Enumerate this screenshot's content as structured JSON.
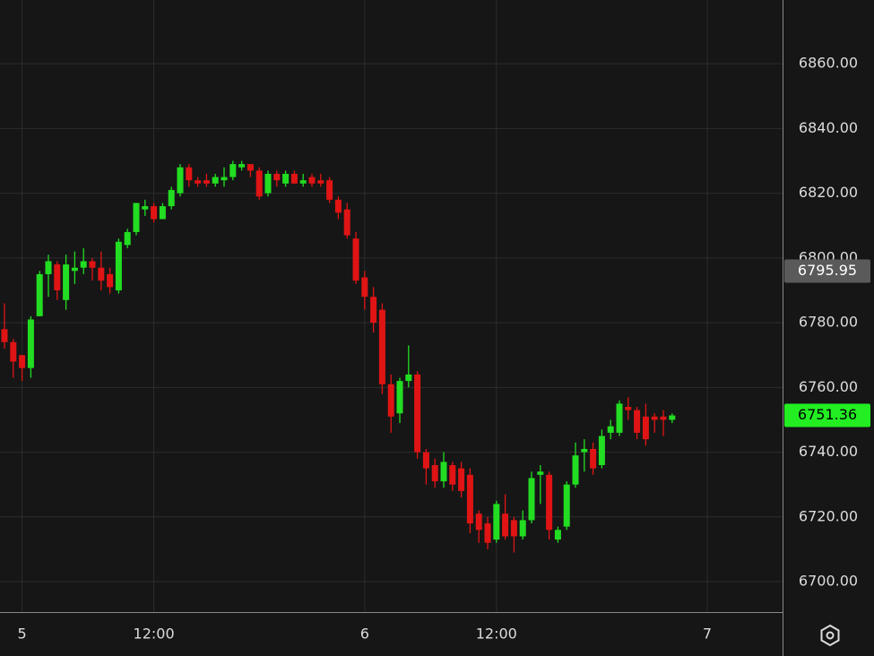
{
  "chart_data": {
    "type": "candlestick",
    "categories": [
      null,
      null,
      "5",
      null,
      null,
      null,
      null,
      null,
      null,
      null,
      null,
      null,
      null,
      null,
      null,
      null,
      null,
      "12:00",
      null,
      null,
      null,
      null,
      null,
      null,
      null,
      null,
      null,
      null,
      null,
      null,
      null,
      null,
      null,
      null,
      null,
      null,
      null,
      null,
      null,
      null,
      null,
      "6",
      null,
      null,
      null,
      null,
      null,
      null,
      null,
      null,
      null,
      null,
      null,
      null,
      null,
      null,
      "12:00",
      null,
      null,
      null,
      null,
      null,
      null,
      null,
      null,
      null,
      null,
      null,
      null,
      null,
      null,
      null,
      null,
      null,
      null,
      null,
      null,
      null,
      null,
      null,
      "7"
    ],
    "open": [
      6778,
      6774,
      6770,
      6766,
      6782,
      6795,
      6798,
      6787,
      6796,
      6797,
      6799,
      6797,
      6795,
      6790,
      6804,
      6808,
      6815,
      6816,
      6812,
      6816,
      6820,
      6828,
      6824,
      6824,
      6823,
      6824,
      6825,
      6828,
      6829,
      6827,
      6820,
      6826,
      6823,
      6826,
      6823,
      6825,
      6824,
      6824,
      6818,
      6815,
      6806,
      6794,
      6788,
      6784,
      6761,
      6752,
      6762,
      6764,
      6740,
      6736,
      6731,
      6736,
      6735,
      6733,
      6721,
      6718,
      6713,
      6721,
      6719,
      6714,
      6719,
      6733,
      6733,
      6713,
      6717,
      6730,
      6740,
      6741,
      6736,
      6746,
      6746,
      6754,
      6753,
      6751,
      6751,
      6751,
      6750,
      null,
      null,
      null,
      null
    ],
    "high": [
      6786,
      6775,
      6770,
      6782,
      6796,
      6801,
      6799,
      6801,
      6802,
      6803,
      6800,
      6802,
      6797,
      6806,
      6809,
      6817,
      6818,
      6817,
      6817,
      6822,
      6829,
      6829,
      6825,
      6826,
      6826,
      6828,
      6830,
      6830,
      6829,
      6828,
      6827,
      6827,
      6827,
      6827,
      6826,
      6826,
      6826,
      6825,
      6819,
      6817,
      6808,
      6796,
      6791,
      6786,
      6764,
      6763,
      6773,
      6765,
      6741,
      6738,
      6740,
      6737,
      6737,
      6735,
      6722,
      6720,
      6725,
      6727,
      6720,
      6722,
      6734,
      6736,
      6734,
      6717,
      6731,
      6743,
      6744,
      6743,
      6747,
      6750,
      6756,
      6757,
      6754,
      6755,
      6752,
      6753,
      6752,
      null,
      null,
      null,
      null
    ],
    "low": [
      6772,
      6763,
      6762,
      6763,
      6782,
      6788,
      6787,
      6784,
      6792,
      6795,
      6793,
      6790,
      6789,
      6789,
      6803,
      6807,
      6813,
      6811,
      6812,
      6815,
      6819,
      6822,
      6822,
      6822,
      6822,
      6822,
      6824,
      6827,
      6825,
      6818,
      6819,
      6822,
      6822,
      6823,
      6822,
      6822,
      6822,
      6817,
      6812,
      6806,
      6792,
      6784,
      6777,
      6758,
      6746,
      6749,
      6760,
      6738,
      6730,
      6729,
      6729,
      6728,
      6726,
      6715,
      6712,
      6710,
      6712,
      6713,
      6709,
      6713,
      6718,
      6724,
      6713,
      6712,
      6716,
      6729,
      6734,
      6733,
      6735,
      6744,
      6745,
      6750,
      6744,
      6742,
      6746,
      6745,
      6749,
      null,
      null,
      null,
      null
    ],
    "close": [
      6774,
      6768,
      6766,
      6781,
      6795,
      6799,
      6790,
      6798,
      6797,
      6799,
      6797,
      6793,
      6791,
      6805,
      6808,
      6817,
      6816,
      6812,
      6816,
      6821,
      6828,
      6824,
      6823,
      6823,
      6825,
      6825,
      6829,
      6829,
      6827,
      6819,
      6826,
      6824,
      6826,
      6823,
      6824,
      6823,
      6823,
      6818,
      6814,
      6807,
      6793,
      6788,
      6780,
      6761,
      6751,
      6762,
      6764,
      6740,
      6735,
      6731,
      6737,
      6730,
      6728,
      6718,
      6716,
      6712,
      6724,
      6714,
      6714,
      6719,
      6732,
      6734,
      6716,
      6716,
      6730,
      6739,
      6741,
      6735,
      6745,
      6748,
      6755,
      6753,
      6746,
      6744,
      6750,
      6750,
      6751.36,
      null,
      null,
      null,
      null
    ],
    "up_color": "#22dd22",
    "down_color": "#e01414",
    "ylim": [
      6690.6,
      6879.7
    ],
    "yticks": [
      {
        "value": 6700,
        "label": "6700.00"
      },
      {
        "value": 6720,
        "label": "6720.00"
      },
      {
        "value": 6740,
        "label": "6740.00"
      },
      {
        "value": 6760,
        "label": "6760.00"
      },
      {
        "value": 6780,
        "label": "6780.00"
      },
      {
        "value": 6800,
        "label": "6800.00"
      },
      {
        "value": 6820,
        "label": "6820.00"
      },
      {
        "value": 6840,
        "label": "6840.00"
      },
      {
        "value": 6860,
        "label": "6860.00"
      }
    ],
    "price_tags": [
      {
        "value": 6795.95,
        "color": "#5a5a5a",
        "text_color": "#ffffff"
      },
      {
        "value": 6751.36,
        "color": "#22ee22",
        "text_color": "#000000"
      }
    ],
    "grid": true
  }
}
